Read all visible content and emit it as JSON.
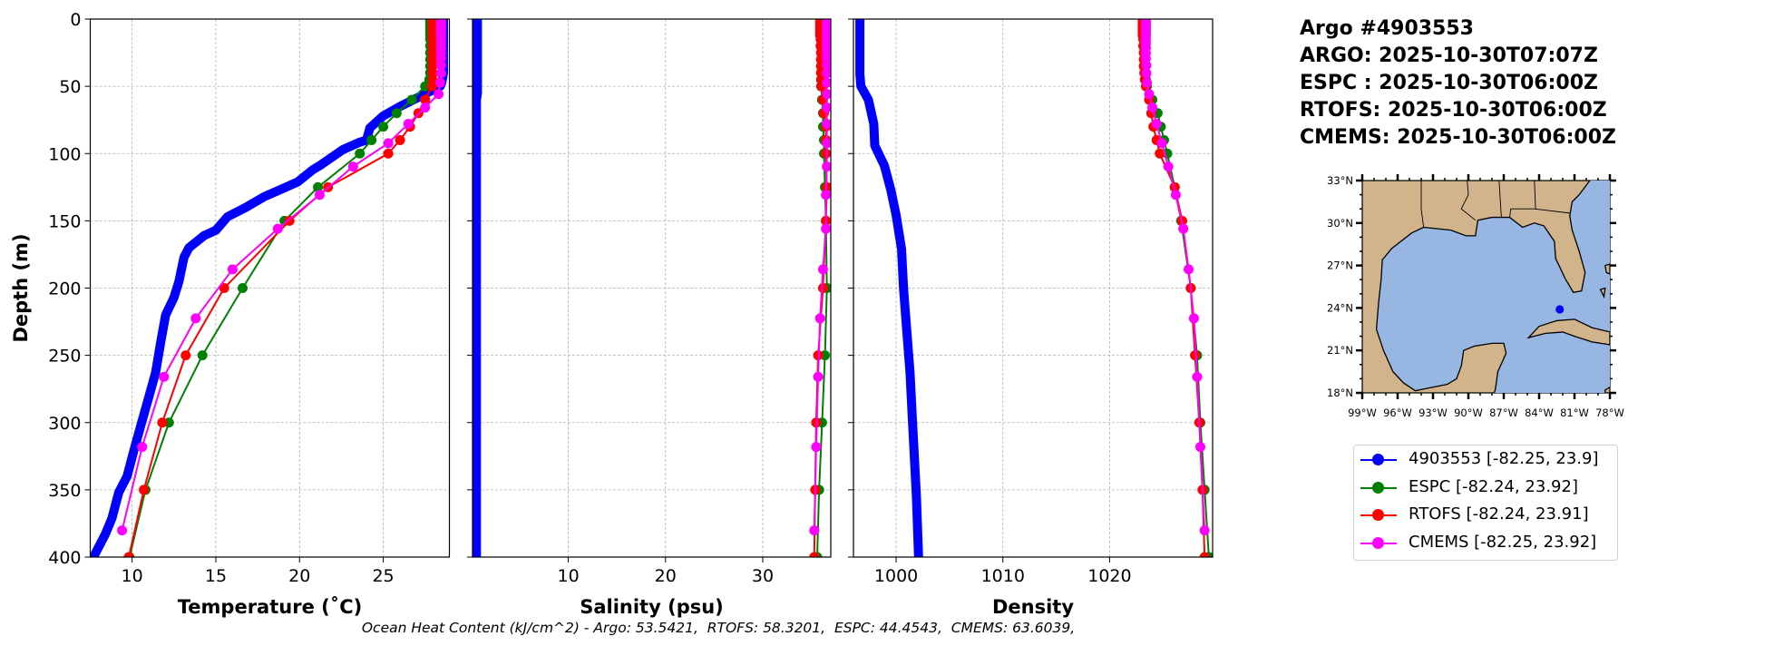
{
  "title_block": {
    "lines": [
      "Argo #4903553",
      "ARGO: 2025-10-30T07:07Z",
      "ESPC : 2025-10-30T06:00Z",
      "RTOFS: 2025-10-30T06:00Z",
      "CMEMS: 2025-10-30T06:00Z"
    ]
  },
  "ohc_text": "Ocean Heat Content (kJ/cm^2) - Argo: 53.5421,  RTOFS: 58.3201,  ESPC: 44.4543,  CMEMS: 63.6039,",
  "legend": [
    {
      "label": "4903553 [-82.25, 23.9]",
      "color": "#0000ff"
    },
    {
      "label": "ESPC [-82.24, 23.92]",
      "color": "#008000"
    },
    {
      "label": "RTOFS [-82.24, 23.91]",
      "color": "#ff0000"
    },
    {
      "label": "CMEMS [-82.25, 23.92]",
      "color": "#ff00ff"
    }
  ],
  "map": {
    "lon_range": [
      -99,
      -78
    ],
    "lat_range": [
      18,
      33
    ],
    "lon_ticks": [
      -99,
      -96,
      -93,
      -90,
      -87,
      -84,
      -81,
      -78
    ],
    "lon_tick_labels": [
      "99°W",
      "96°W",
      "93°W",
      "90°W",
      "87°W",
      "84°W",
      "81°W",
      "78°W"
    ],
    "lat_ticks": [
      18,
      21,
      24,
      27,
      30,
      33
    ],
    "lat_tick_labels": [
      "18°N",
      "21°N",
      "24°N",
      "27°N",
      "30°N",
      "33°N"
    ],
    "land_color": "#d2b48c",
    "sea_color": "#97b6e1",
    "marker": {
      "lon": -82.25,
      "lat": 23.9,
      "color": "#0000ff"
    }
  },
  "chart_data": [
    {
      "type": "line",
      "xlabel": "Temperature (˚C)",
      "ylabel": "Depth (m)",
      "xlim": [
        7.5,
        28.95
      ],
      "ylim": [
        400,
        0
      ],
      "xticks": [
        10,
        15,
        20,
        25
      ],
      "yticks": [
        0,
        50,
        100,
        150,
        200,
        250,
        300,
        350,
        400
      ],
      "grid": true,
      "series": [
        {
          "name": "4903553",
          "color": "#0000ff",
          "markers": false,
          "depth": [
            0,
            10,
            20,
            30,
            40,
            47,
            50,
            55,
            60,
            65,
            72,
            81,
            90,
            92,
            97,
            103,
            109,
            112,
            121,
            126,
            132,
            140,
            147,
            157,
            161,
            170,
            177,
            195,
            207,
            220,
            241,
            263,
            281,
            303,
            321,
            340,
            352,
            371,
            383,
            395,
            400
          ],
          "values": [
            28.6,
            28.6,
            28.6,
            28.6,
            28.6,
            28.5,
            28.4,
            27.6,
            26.8,
            26.0,
            25.0,
            24.2,
            24.0,
            23.5,
            22.6,
            21.9,
            21.2,
            20.8,
            19.9,
            19.0,
            17.9,
            16.8,
            15.7,
            15.0,
            14.3,
            13.4,
            13.1,
            12.8,
            12.5,
            12.0,
            11.7,
            11.4,
            11.0,
            10.5,
            10.1,
            9.7,
            9.2,
            8.8,
            8.4,
            7.9,
            7.7
          ]
        },
        {
          "name": "ESPC",
          "color": "#008000",
          "markers": true,
          "depth": [
            0,
            2,
            4,
            6,
            8,
            10,
            12,
            15,
            20,
            25,
            30,
            35,
            40,
            45,
            50,
            60,
            70,
            80,
            90,
            100,
            125,
            150,
            200,
            250,
            300,
            350,
            400
          ],
          "values": [
            27.8,
            27.8,
            27.8,
            27.8,
            27.8,
            27.8,
            27.8,
            27.8,
            27.8,
            27.8,
            27.8,
            27.8,
            27.8,
            27.75,
            27.5,
            26.7,
            25.8,
            25.0,
            24.3,
            23.6,
            21.1,
            19.1,
            16.6,
            14.2,
            12.2,
            10.8,
            9.85
          ]
        },
        {
          "name": "RTOFS",
          "color": "#ff0000",
          "markers": true,
          "depth": [
            0,
            2,
            4,
            6,
            8,
            10,
            12,
            15,
            20,
            25,
            30,
            35,
            40,
            45,
            50,
            60,
            70,
            80,
            90,
            100,
            125,
            150,
            200,
            250,
            300,
            350,
            400
          ],
          "values": [
            27.95,
            27.95,
            27.95,
            27.95,
            27.95,
            27.95,
            27.95,
            27.95,
            27.95,
            27.95,
            27.95,
            27.95,
            27.95,
            27.95,
            27.9,
            27.5,
            27.1,
            26.6,
            26.0,
            25.3,
            21.7,
            19.4,
            15.5,
            13.2,
            11.8,
            10.7,
            9.8
          ]
        },
        {
          "name": "CMEMS",
          "color": "#ff00ff",
          "markers": true,
          "depth": [
            0.5,
            1.5,
            2.6,
            3.8,
            5.1,
            6.4,
            7.9,
            9.6,
            11.4,
            13.5,
            15.8,
            18.5,
            21.6,
            25.2,
            29.4,
            34.4,
            40.3,
            47.4,
            55.8,
            65.8,
            77.9,
            92.3,
            109.7,
            130.7,
            155.9,
            186.1,
            222.5,
            266.0,
            318.1,
            380.2
          ],
          "values": [
            28.45,
            28.45,
            28.45,
            28.45,
            28.45,
            28.45,
            28.45,
            28.45,
            28.45,
            28.45,
            28.45,
            28.45,
            28.45,
            28.45,
            28.45,
            28.45,
            28.45,
            28.4,
            28.3,
            27.5,
            26.5,
            25.3,
            23.2,
            21.2,
            18.7,
            16.0,
            13.8,
            11.9,
            10.6,
            9.4
          ]
        }
      ]
    },
    {
      "type": "line",
      "xlabel": "Salinity (psu)",
      "ylabel": "",
      "xlim": [
        0.15,
        37.0
      ],
      "ylim": [
        400,
        0
      ],
      "xticks": [
        10,
        20,
        30
      ],
      "yticks": [
        0,
        50,
        100,
        150,
        200,
        250,
        300,
        350,
        400
      ],
      "grid": true,
      "series": [
        {
          "name": "4903553",
          "color": "#0000ff",
          "markers": false,
          "depth": [
            0,
            55,
            60,
            400
          ],
          "values": [
            0.65,
            0.65,
            0.55,
            0.55
          ]
        },
        {
          "name": "ESPC",
          "color": "#008000",
          "markers": true,
          "depth": [
            0,
            2,
            4,
            6,
            8,
            10,
            12,
            15,
            20,
            25,
            30,
            35,
            40,
            45,
            50,
            60,
            70,
            80,
            90,
            100,
            125,
            150,
            200,
            250,
            300,
            350,
            400
          ],
          "values": [
            36.0,
            36.0,
            36.0,
            36.0,
            36.0,
            36.0,
            36.0,
            36.0,
            36.0,
            36.0,
            36.0,
            36.0,
            36.0,
            36.0,
            36.0,
            36.1,
            36.2,
            36.2,
            36.3,
            36.3,
            36.4,
            36.5,
            36.6,
            36.4,
            36.1,
            35.8,
            35.6
          ]
        },
        {
          "name": "RTOFS",
          "color": "#ff0000",
          "markers": true,
          "depth": [
            0,
            2,
            4,
            6,
            8,
            10,
            12,
            15,
            20,
            25,
            30,
            35,
            40,
            45,
            50,
            60,
            70,
            80,
            90,
            100,
            125,
            150,
            200,
            250,
            300,
            350,
            400
          ],
          "values": [
            35.9,
            35.9,
            35.9,
            35.9,
            35.9,
            35.9,
            35.9,
            35.95,
            35.95,
            36.0,
            36.0,
            36.0,
            36.0,
            36.05,
            36.05,
            36.2,
            36.3,
            36.5,
            36.5,
            36.5,
            36.6,
            36.5,
            36.2,
            35.7,
            35.5,
            35.4,
            35.3
          ]
        },
        {
          "name": "CMEMS",
          "color": "#ff00ff",
          "markers": true,
          "depth": [
            0.5,
            1.5,
            2.6,
            3.8,
            5.1,
            6.4,
            7.9,
            9.6,
            11.4,
            13.5,
            15.8,
            18.5,
            21.6,
            25.2,
            29.4,
            34.4,
            40.3,
            47.4,
            55.8,
            65.8,
            77.9,
            92.3,
            109.7,
            130.7,
            155.9,
            186.1,
            222.5,
            266.0,
            318.1,
            380.2
          ],
          "values": [
            36.6,
            36.6,
            36.6,
            36.6,
            36.6,
            36.6,
            36.6,
            36.6,
            36.6,
            36.6,
            36.6,
            36.6,
            36.6,
            36.6,
            36.6,
            36.6,
            36.6,
            36.6,
            36.6,
            36.6,
            36.6,
            36.6,
            36.6,
            36.5,
            36.5,
            36.2,
            35.9,
            35.7,
            35.5,
            35.3
          ]
        }
      ]
    },
    {
      "type": "line",
      "xlabel": "Density",
      "ylabel": "",
      "xlim": [
        996.0,
        1029.65
      ],
      "ylim": [
        400,
        0
      ],
      "xticks": [
        1000,
        1010,
        1020
      ],
      "yticks": [
        0,
        50,
        100,
        150,
        200,
        250,
        300,
        350,
        400
      ],
      "grid": true,
      "series": [
        {
          "name": "4903553",
          "color": "#0000ff",
          "markers": false,
          "depth": [
            0,
            41,
            50,
            60,
            78,
            94,
            109,
            127,
            146,
            171,
            201,
            232,
            263,
            294,
            325,
            355,
            400
          ],
          "values": [
            996.6,
            996.6,
            996.7,
            997.4,
            997.9,
            998.0,
            998.9,
            999.5,
            1000.0,
            1000.5,
            1000.7,
            1001.0,
            1001.3,
            1001.5,
            1001.7,
            1001.9,
            1002.1
          ]
        },
        {
          "name": "ESPC",
          "color": "#008000",
          "markers": true,
          "depth": [
            0,
            2,
            4,
            6,
            8,
            10,
            12,
            15,
            20,
            25,
            30,
            35,
            40,
            45,
            50,
            60,
            70,
            80,
            90,
            100,
            125,
            150,
            200,
            250,
            300,
            350,
            400
          ],
          "values": [
            1023.3,
            1023.3,
            1023.3,
            1023.3,
            1023.3,
            1023.3,
            1023.3,
            1023.3,
            1023.3,
            1023.3,
            1023.3,
            1023.3,
            1023.35,
            1023.4,
            1023.5,
            1024.0,
            1024.5,
            1024.8,
            1025.1,
            1025.4,
            1026.1,
            1026.7,
            1027.6,
            1028.2,
            1028.5,
            1028.9,
            1029.3
          ]
        },
        {
          "name": "RTOFS",
          "color": "#ff0000",
          "markers": true,
          "depth": [
            0,
            2,
            4,
            6,
            8,
            10,
            12,
            15,
            20,
            25,
            30,
            35,
            40,
            45,
            50,
            60,
            70,
            80,
            90,
            100,
            125,
            150,
            200,
            250,
            300,
            350,
            400
          ],
          "values": [
            1023.1,
            1023.1,
            1023.1,
            1023.1,
            1023.1,
            1023.1,
            1023.1,
            1023.15,
            1023.15,
            1023.2,
            1023.2,
            1023.2,
            1023.25,
            1023.3,
            1023.4,
            1023.7,
            1023.9,
            1024.1,
            1024.4,
            1024.7,
            1026.1,
            1026.8,
            1027.6,
            1028.0,
            1028.4,
            1028.7,
            1028.9
          ]
        },
        {
          "name": "CMEMS",
          "color": "#ff00ff",
          "markers": true,
          "depth": [
            0.5,
            1.5,
            2.6,
            3.8,
            5.1,
            6.4,
            7.9,
            9.6,
            11.4,
            13.5,
            15.8,
            18.5,
            21.6,
            25.2,
            29.4,
            34.4,
            40.3,
            47.4,
            55.8,
            65.8,
            77.9,
            92.3,
            109.7,
            130.7,
            155.9,
            186.1,
            222.5,
            266.0,
            318.1,
            380.2
          ],
          "values": [
            1023.4,
            1023.4,
            1023.4,
            1023.4,
            1023.4,
            1023.4,
            1023.4,
            1023.4,
            1023.4,
            1023.4,
            1023.4,
            1023.4,
            1023.4,
            1023.4,
            1023.4,
            1023.45,
            1023.45,
            1023.5,
            1023.7,
            1024.0,
            1024.4,
            1024.9,
            1025.5,
            1026.2,
            1026.9,
            1027.4,
            1027.9,
            1028.2,
            1028.5,
            1028.9
          ]
        }
      ]
    }
  ]
}
